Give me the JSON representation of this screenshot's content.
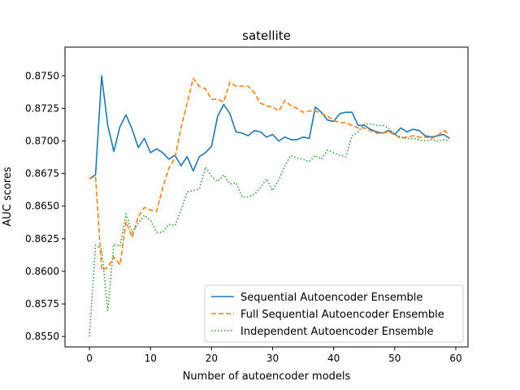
{
  "chart_data": {
    "type": "line",
    "title": "satellite",
    "xlabel": "Number of autoencoder models",
    "ylabel": "AUC scores",
    "xlim": [
      -4,
      62
    ],
    "ylim": [
      0.8542,
      0.8772
    ],
    "xticks": [
      0,
      10,
      20,
      30,
      40,
      50,
      60
    ],
    "yticks": [
      0.855,
      0.8575,
      0.86,
      0.8625,
      0.865,
      0.8675,
      0.87,
      0.8725,
      0.875
    ],
    "ytick_labels": [
      "0.8550",
      "0.8575",
      "0.8600",
      "0.8625",
      "0.8650",
      "0.8675",
      "0.8700",
      "0.8725",
      "0.8750"
    ],
    "legend_position": "lower-right",
    "x": [
      0,
      1,
      2,
      3,
      4,
      5,
      6,
      7,
      8,
      9,
      10,
      11,
      12,
      13,
      14,
      15,
      16,
      17,
      18,
      19,
      20,
      21,
      22,
      23,
      24,
      25,
      26,
      27,
      28,
      29,
      30,
      31,
      32,
      33,
      34,
      35,
      36,
      37,
      38,
      39,
      40,
      41,
      42,
      43,
      44,
      45,
      46,
      47,
      48,
      49,
      50,
      51,
      52,
      53,
      54,
      55,
      56,
      57,
      58,
      59
    ],
    "series": [
      {
        "name": "Sequential Autoencoder Ensemble",
        "color": "#1f77b4",
        "style": "solid",
        "values": [
          0.8671,
          0.8674,
          0.875,
          0.8712,
          0.8692,
          0.8711,
          0.872,
          0.8709,
          0.8695,
          0.8702,
          0.8691,
          0.8694,
          0.8691,
          0.8686,
          0.8689,
          0.8681,
          0.8688,
          0.8677,
          0.8688,
          0.8691,
          0.8696,
          0.8719,
          0.8728,
          0.8721,
          0.8707,
          0.8706,
          0.8704,
          0.8708,
          0.8707,
          0.8703,
          0.8705,
          0.87,
          0.8703,
          0.8701,
          0.8701,
          0.8703,
          0.8702,
          0.8726,
          0.8722,
          0.8716,
          0.8715,
          0.8721,
          0.8722,
          0.8722,
          0.8712,
          0.8712,
          0.8709,
          0.8707,
          0.8706,
          0.8708,
          0.8705,
          0.871,
          0.8707,
          0.8709,
          0.8708,
          0.8704,
          0.8703,
          0.8704,
          0.8705,
          0.8702
        ]
      },
      {
        "name": "Full Sequential Autoencoder Ensemble",
        "color": "#ff7f0e",
        "style": "dashed",
        "values": [
          0.8671,
          0.8673,
          0.8601,
          0.8603,
          0.8611,
          0.8605,
          0.8638,
          0.8626,
          0.8642,
          0.8649,
          0.8647,
          0.8646,
          0.8664,
          0.8679,
          0.8687,
          0.871,
          0.8729,
          0.8748,
          0.8742,
          0.874,
          0.8732,
          0.8732,
          0.873,
          0.8745,
          0.8742,
          0.8742,
          0.8742,
          0.8737,
          0.8729,
          0.8727,
          0.8726,
          0.8723,
          0.8731,
          0.8727,
          0.8725,
          0.8722,
          0.8723,
          0.8723,
          0.8721,
          0.8719,
          0.8716,
          0.8714,
          0.8714,
          0.8712,
          0.871,
          0.871,
          0.8708,
          0.8706,
          0.8706,
          0.8707,
          0.8705,
          0.8702,
          0.8703,
          0.8704,
          0.8703,
          0.8703,
          0.8702,
          0.8704,
          0.8708,
          0.8705
        ]
      },
      {
        "name": "Independent Autoencoder Ensemble",
        "color": "#2ca02c",
        "style": "dotted",
        "values": [
          0.855,
          0.862,
          0.8617,
          0.857,
          0.8621,
          0.8619,
          0.8644,
          0.863,
          0.8637,
          0.8643,
          0.8639,
          0.863,
          0.863,
          0.8636,
          0.8635,
          0.8647,
          0.8661,
          0.8662,
          0.8663,
          0.868,
          0.8673,
          0.8669,
          0.8674,
          0.8667,
          0.8668,
          0.8657,
          0.8657,
          0.8659,
          0.8664,
          0.8671,
          0.8662,
          0.867,
          0.8681,
          0.8689,
          0.8687,
          0.8686,
          0.8684,
          0.8689,
          0.8686,
          0.8693,
          0.8691,
          0.8689,
          0.8688,
          0.8704,
          0.8707,
          0.8713,
          0.8713,
          0.8712,
          0.8712,
          0.871,
          0.8705,
          0.8703,
          0.8702,
          0.8702,
          0.8701,
          0.87,
          0.8701,
          0.87,
          0.8701,
          0.87
        ]
      }
    ]
  }
}
